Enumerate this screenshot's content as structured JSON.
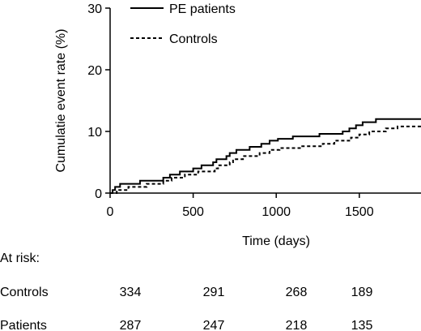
{
  "chart_data": {
    "type": "line",
    "title": "",
    "xlabel": "Time (days)",
    "ylabel": "Cumulatie event rate (%)",
    "xlim": [
      0,
      1900
    ],
    "ylim": [
      0,
      30
    ],
    "x_ticks": [
      0,
      500,
      1000,
      1500
    ],
    "y_ticks": [
      0,
      10,
      20,
      30
    ],
    "legend_position": "top-center",
    "series": [
      {
        "name": "PE patients",
        "style": "solid",
        "color": "#000000",
        "points": [
          [
            0,
            0
          ],
          [
            15,
            0.5
          ],
          [
            30,
            1.0
          ],
          [
            60,
            1.5
          ],
          [
            180,
            2.0
          ],
          [
            320,
            2.5
          ],
          [
            360,
            3.0
          ],
          [
            420,
            3.5
          ],
          [
            500,
            4.0
          ],
          [
            550,
            4.5
          ],
          [
            620,
            5.0
          ],
          [
            640,
            5.5
          ],
          [
            700,
            6.0
          ],
          [
            720,
            6.5
          ],
          [
            760,
            7.0
          ],
          [
            840,
            7.5
          ],
          [
            910,
            8.0
          ],
          [
            960,
            8.5
          ],
          [
            1010,
            8.8
          ],
          [
            1100,
            9.2
          ],
          [
            1260,
            9.6
          ],
          [
            1400,
            10.0
          ],
          [
            1440,
            10.5
          ],
          [
            1480,
            11.0
          ],
          [
            1520,
            11.5
          ],
          [
            1600,
            12.0
          ],
          [
            1900,
            12.0
          ]
        ]
      },
      {
        "name": "Controls",
        "style": "dashed",
        "color": "#000000",
        "points": [
          [
            0,
            0
          ],
          [
            40,
            0.5
          ],
          [
            110,
            1.0
          ],
          [
            220,
            1.5
          ],
          [
            320,
            2.0
          ],
          [
            370,
            2.5
          ],
          [
            450,
            3.0
          ],
          [
            530,
            3.5
          ],
          [
            630,
            4.0
          ],
          [
            650,
            4.5
          ],
          [
            720,
            5.0
          ],
          [
            740,
            5.5
          ],
          [
            800,
            6.0
          ],
          [
            900,
            6.5
          ],
          [
            960,
            7.0
          ],
          [
            1020,
            7.3
          ],
          [
            1150,
            7.6
          ],
          [
            1280,
            8.0
          ],
          [
            1350,
            8.5
          ],
          [
            1450,
            9.0
          ],
          [
            1500,
            9.5
          ],
          [
            1560,
            10.0
          ],
          [
            1660,
            10.5
          ],
          [
            1730,
            10.8
          ],
          [
            1900,
            10.8
          ]
        ]
      }
    ]
  },
  "at_risk": {
    "heading": "At risk:",
    "rows": [
      {
        "label": "Controls",
        "values": [
          "334",
          "291",
          "268",
          "189"
        ]
      },
      {
        "label": "Patients",
        "values": [
          "287",
          "247",
          "218",
          "135"
        ]
      }
    ]
  }
}
